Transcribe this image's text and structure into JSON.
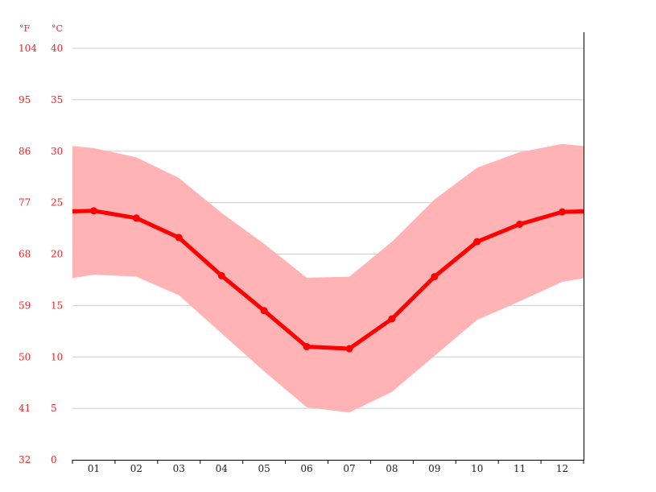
{
  "chart_data": {
    "type": "area",
    "categories": [
      "01",
      "02",
      "03",
      "04",
      "05",
      "06",
      "07",
      "08",
      "09",
      "10",
      "11",
      "12"
    ],
    "y_unit_left": "°F",
    "y_unit_right": "°C",
    "ylim": [
      0,
      40
    ],
    "y_ticks_c": [
      "40",
      "35",
      "30",
      "25",
      "20",
      "15",
      "10",
      "5",
      "0"
    ],
    "y_ticks_f": [
      "104",
      "95",
      "86",
      "77",
      "68",
      "59",
      "50",
      "41",
      "32"
    ],
    "grid": true,
    "series": [
      {
        "values": [
          24.2,
          23.5,
          21.6,
          17.9,
          14.5,
          11.0,
          10.8,
          13.7,
          17.8,
          21.2,
          22.9,
          24.1
        ]
      },
      {
        "values": [
          30.3,
          29.4,
          27.4,
          24.0,
          21.0,
          17.7,
          17.8,
          21.2,
          25.3,
          28.4,
          29.9,
          30.7
        ]
      },
      {
        "values": [
          18.0,
          17.8,
          16.0,
          12.3,
          8.6,
          5.1,
          4.6,
          6.6,
          10.1,
          13.6,
          15.4,
          17.3
        ]
      }
    ],
    "colors": {
      "line": "#ff0000",
      "band": "#ffb3b5",
      "grid": "#cccccc",
      "tick_text": "#e8262b",
      "axis": "#000000"
    }
  }
}
